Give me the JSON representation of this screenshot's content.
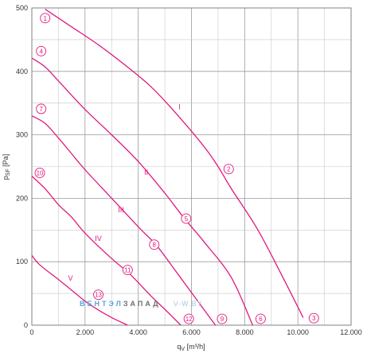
{
  "chart_data": {
    "type": "line",
    "xlabel": "qV [m³/h]",
    "ylabel": "pSF [Pa]",
    "xlim": [
      0,
      12000
    ],
    "ylim": [
      0,
      500
    ],
    "x_ticks": [
      {
        "value": 0,
        "label": "0"
      },
      {
        "value": 2000,
        "label": "2.000"
      },
      {
        "value": 4000,
        "label": "4.000"
      },
      {
        "value": 6000,
        "label": "6.000"
      },
      {
        "value": 8000,
        "label": "8.000"
      },
      {
        "value": 10000,
        "label": "10.000"
      },
      {
        "value": 12000,
        "label": "12.000"
      }
    ],
    "y_ticks": [
      {
        "value": 0,
        "label": "0"
      },
      {
        "value": 100,
        "label": "100"
      },
      {
        "value": 200,
        "label": "200"
      },
      {
        "value": 300,
        "label": "300"
      },
      {
        "value": 400,
        "label": "400"
      },
      {
        "value": 500,
        "label": "500"
      }
    ],
    "grid": true,
    "curve_color": "#e0197d",
    "series": [
      {
        "name": "I",
        "label_pos": [
          5550,
          340
        ],
        "x": [
          500,
          1500,
          2500,
          3500,
          4500,
          5500,
          6500,
          7000,
          7500,
          8500,
          9500,
          10200
        ],
        "y": [
          498,
          470,
          442,
          410,
          375,
          330,
          280,
          250,
          215,
          150,
          70,
          12
        ]
      },
      {
        "name": "II",
        "label_pos": [
          4300,
          237
        ],
        "x": [
          0,
          500,
          1000,
          2000,
          3000,
          4000,
          5000,
          5700,
          6500,
          7500,
          8300
        ],
        "y": [
          421,
          407,
          385,
          340,
          300,
          258,
          208,
          170,
          130,
          75,
          0
        ]
      },
      {
        "name": "III",
        "label_pos": [
          3350,
          178
        ],
        "x": [
          0,
          500,
          1000,
          1500,
          2000,
          3000,
          4000,
          4700,
          5500,
          6200,
          6900
        ],
        "y": [
          330,
          318,
          295,
          270,
          245,
          200,
          155,
          125,
          80,
          40,
          0
        ]
      },
      {
        "name": "IV",
        "label_pos": [
          2500,
          133
        ],
        "x": [
          0,
          500,
          1000,
          1500,
          2000,
          3000,
          3700,
          4500,
          5000,
          5600
        ],
        "y": [
          235,
          215,
          190,
          170,
          145,
          105,
          80,
          45,
          25,
          0
        ]
      },
      {
        "name": "V",
        "label_pos": [
          1450,
          70
        ],
        "x": [
          0,
          300,
          1000,
          1500,
          2000,
          2500,
          3000,
          3600
        ],
        "y": [
          110,
          95,
          72,
          55,
          38,
          24,
          12,
          0
        ]
      }
    ],
    "markers": [
      {
        "label": "1",
        "x": 500,
        "y": 484
      },
      {
        "label": "2",
        "x": 7400,
        "y": 246
      },
      {
        "label": "3",
        "x": 10600,
        "y": 11
      },
      {
        "label": "4",
        "x": 350,
        "y": 432
      },
      {
        "label": "5",
        "x": 5800,
        "y": 168
      },
      {
        "label": "6",
        "x": 8600,
        "y": 10
      },
      {
        "label": "7",
        "x": 350,
        "y": 341
      },
      {
        "label": "8",
        "x": 4600,
        "y": 127
      },
      {
        "label": "9",
        "x": 7150,
        "y": 10
      },
      {
        "label": "10",
        "x": 300,
        "y": 240
      },
      {
        "label": "11",
        "x": 3600,
        "y": 87
      },
      {
        "label": "12",
        "x": 5900,
        "y": 10
      },
      {
        "label": "13",
        "x": 2500,
        "y": 48
      }
    ]
  },
  "watermark": {
    "part1": "ВЕНТЭЛ",
    "part2": "ЗАПАД",
    "part3": "V-W.BY",
    "color1": "#5aa6d8",
    "color2": "#6e6e6e",
    "color3": "#a8c8e0"
  }
}
